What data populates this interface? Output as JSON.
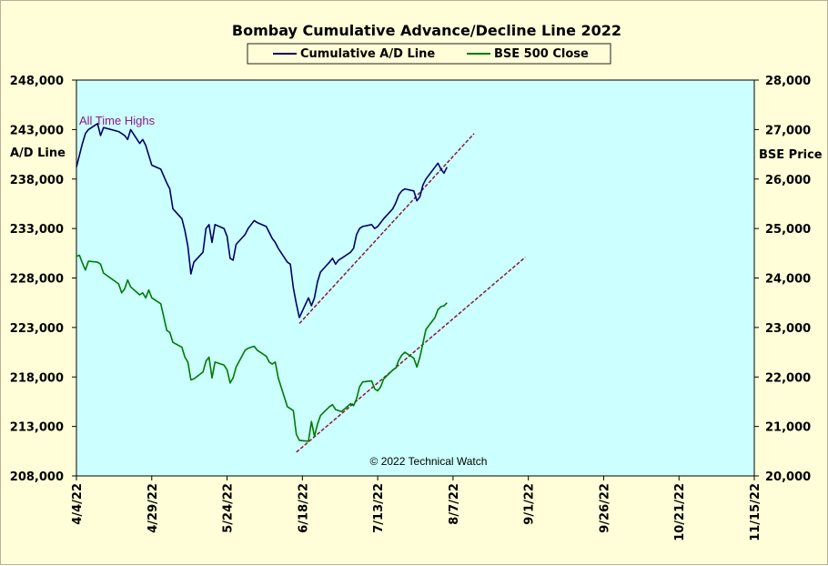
{
  "chart_data": {
    "type": "line",
    "title": "Bombay Cumulative Advance/Decline Line 2022",
    "y_left_label": "A/D Line",
    "y_right_label": "BSE Price",
    "y_left_lim": [
      208000,
      248000
    ],
    "y_right_lim": [
      20000,
      28000
    ],
    "y_left_ticks": [
      "248,000",
      "243,000",
      "238,000",
      "233,000",
      "228,000",
      "223,000",
      "218,000",
      "213,000",
      "208,000"
    ],
    "y_right_ticks": [
      "28,000",
      "27,000",
      "26,000",
      "25,000",
      "24,000",
      "23,000",
      "22,000",
      "21,000",
      "20,000"
    ],
    "x_tick_labels": [
      "4/4/22",
      "4/29/22",
      "5/24/22",
      "6/18/22",
      "7/13/22",
      "8/7/22",
      "9/1/22",
      "9/26/22",
      "10/21/22",
      "11/15/22"
    ],
    "x_range": [
      "2022-04-04",
      "2022-11-15"
    ],
    "grid": false,
    "legend_placement": "top-center",
    "annotations": {
      "all_time_highs": "All Time Highs",
      "copyright": "© 2022 Technical Watch"
    },
    "colors": {
      "plot_background": "#ccffff",
      "chart_background": "#fffed8",
      "ad_line": "#000066",
      "bse_line": "#007a00",
      "trendline": "#8b1a3a",
      "annotation": "#8b1a8b"
    },
    "series": [
      {
        "name": "Cumulative A/D Line",
        "axis": "left",
        "data": [
          [
            "2022-04-04",
            239200
          ],
          [
            "2022-04-05",
            240400
          ],
          [
            "2022-04-06",
            241600
          ],
          [
            "2022-04-07",
            242600
          ],
          [
            "2022-04-08",
            243000
          ],
          [
            "2022-04-11",
            243600
          ],
          [
            "2022-04-12",
            242400
          ],
          [
            "2022-04-13",
            243200
          ],
          [
            "2022-04-18",
            242800
          ],
          [
            "2022-04-19",
            242600
          ],
          [
            "2022-04-20",
            242400
          ],
          [
            "2022-04-21",
            242000
          ],
          [
            "2022-04-22",
            243000
          ],
          [
            "2022-04-25",
            241600
          ],
          [
            "2022-04-26",
            242000
          ],
          [
            "2022-04-27",
            241400
          ],
          [
            "2022-04-28",
            240400
          ],
          [
            "2022-04-29",
            239400
          ],
          [
            "2022-05-02",
            239000
          ],
          [
            "2022-05-04",
            237600
          ],
          [
            "2022-05-05",
            237000
          ],
          [
            "2022-05-06",
            235000
          ],
          [
            "2022-05-09",
            234000
          ],
          [
            "2022-05-10",
            232800
          ],
          [
            "2022-05-11",
            231200
          ],
          [
            "2022-05-12",
            228400
          ],
          [
            "2022-05-13",
            229600
          ],
          [
            "2022-05-16",
            230600
          ],
          [
            "2022-05-17",
            233000
          ],
          [
            "2022-05-18",
            233400
          ],
          [
            "2022-05-19",
            231600
          ],
          [
            "2022-05-20",
            233400
          ],
          [
            "2022-05-23",
            233000
          ],
          [
            "2022-05-24",
            232200
          ],
          [
            "2022-05-25",
            230000
          ],
          [
            "2022-05-26",
            229800
          ],
          [
            "2022-05-27",
            231400
          ],
          [
            "2022-05-30",
            232400
          ],
          [
            "2022-05-31",
            233000
          ],
          [
            "2022-06-01",
            233400
          ],
          [
            "2022-06-02",
            233800
          ],
          [
            "2022-06-03",
            233600
          ],
          [
            "2022-06-06",
            233200
          ],
          [
            "2022-06-07",
            232600
          ],
          [
            "2022-06-08",
            232000
          ],
          [
            "2022-06-09",
            231600
          ],
          [
            "2022-06-10",
            231000
          ],
          [
            "2022-06-13",
            229600
          ],
          [
            "2022-06-14",
            229400
          ],
          [
            "2022-06-15",
            227000
          ],
          [
            "2022-06-16",
            225400
          ],
          [
            "2022-06-17",
            224000
          ],
          [
            "2022-06-20",
            226000
          ],
          [
            "2022-06-21",
            225200
          ],
          [
            "2022-06-22",
            226000
          ],
          [
            "2022-06-23",
            227600
          ],
          [
            "2022-06-24",
            228600
          ],
          [
            "2022-06-27",
            229600
          ],
          [
            "2022-06-28",
            230000
          ],
          [
            "2022-06-29",
            229400
          ],
          [
            "2022-06-30",
            229800
          ],
          [
            "2022-07-01",
            230000
          ],
          [
            "2022-07-04",
            230600
          ],
          [
            "2022-07-05",
            231000
          ],
          [
            "2022-07-06",
            232400
          ],
          [
            "2022-07-07",
            233000
          ],
          [
            "2022-07-08",
            233200
          ],
          [
            "2022-07-11",
            233400
          ],
          [
            "2022-07-12",
            233000
          ],
          [
            "2022-07-13",
            233200
          ],
          [
            "2022-07-14",
            233600
          ],
          [
            "2022-07-15",
            234000
          ],
          [
            "2022-07-18",
            235000
          ],
          [
            "2022-07-19",
            235600
          ],
          [
            "2022-07-20",
            236400
          ],
          [
            "2022-07-21",
            236800
          ],
          [
            "2022-07-22",
            237000
          ],
          [
            "2022-07-25",
            236800
          ],
          [
            "2022-07-26",
            235800
          ],
          [
            "2022-07-27",
            236200
          ],
          [
            "2022-07-28",
            237400
          ],
          [
            "2022-07-29",
            238000
          ],
          [
            "2022-08-01",
            239200
          ],
          [
            "2022-08-02",
            239600
          ],
          [
            "2022-08-03",
            239000
          ],
          [
            "2022-08-04",
            238600
          ],
          [
            "2022-08-05",
            239200
          ]
        ]
      },
      {
        "name": "BSE 500 Close",
        "axis": "right",
        "data": [
          [
            "2022-04-04",
            24440
          ],
          [
            "2022-04-05",
            24460
          ],
          [
            "2022-04-06",
            24300
          ],
          [
            "2022-04-07",
            24160
          ],
          [
            "2022-04-08",
            24340
          ],
          [
            "2022-04-11",
            24320
          ],
          [
            "2022-04-12",
            24280
          ],
          [
            "2022-04-13",
            24100
          ],
          [
            "2022-04-18",
            23880
          ],
          [
            "2022-04-19",
            23700
          ],
          [
            "2022-04-20",
            23780
          ],
          [
            "2022-04-21",
            23960
          ],
          [
            "2022-04-22",
            23820
          ],
          [
            "2022-04-25",
            23660
          ],
          [
            "2022-04-26",
            23700
          ],
          [
            "2022-04-27",
            23600
          ],
          [
            "2022-04-28",
            23760
          ],
          [
            "2022-04-29",
            23600
          ],
          [
            "2022-05-02",
            23480
          ],
          [
            "2022-05-04",
            22940
          ],
          [
            "2022-05-05",
            22900
          ],
          [
            "2022-05-06",
            22700
          ],
          [
            "2022-05-09",
            22600
          ],
          [
            "2022-05-10",
            22400
          ],
          [
            "2022-05-11",
            22300
          ],
          [
            "2022-05-12",
            21940
          ],
          [
            "2022-05-13",
            21960
          ],
          [
            "2022-05-16",
            22100
          ],
          [
            "2022-05-17",
            22320
          ],
          [
            "2022-05-18",
            22400
          ],
          [
            "2022-05-19",
            21980
          ],
          [
            "2022-05-20",
            22300
          ],
          [
            "2022-05-23",
            22240
          ],
          [
            "2022-05-24",
            22140
          ],
          [
            "2022-05-25",
            21880
          ],
          [
            "2022-05-26",
            21980
          ],
          [
            "2022-05-27",
            22200
          ],
          [
            "2022-05-30",
            22540
          ],
          [
            "2022-05-31",
            22580
          ],
          [
            "2022-06-01",
            22600
          ],
          [
            "2022-06-02",
            22620
          ],
          [
            "2022-06-03",
            22540
          ],
          [
            "2022-06-06",
            22420
          ],
          [
            "2022-06-07",
            22300
          ],
          [
            "2022-06-08",
            22260
          ],
          [
            "2022-06-09",
            22300
          ],
          [
            "2022-06-10",
            21980
          ],
          [
            "2022-06-13",
            21400
          ],
          [
            "2022-06-14",
            21360
          ],
          [
            "2022-06-15",
            21320
          ],
          [
            "2022-06-16",
            20840
          ],
          [
            "2022-06-17",
            20720
          ],
          [
            "2022-06-20",
            20700
          ],
          [
            "2022-06-21",
            21100
          ],
          [
            "2022-06-22",
            20800
          ],
          [
            "2022-06-23",
            21040
          ],
          [
            "2022-06-24",
            21220
          ],
          [
            "2022-06-27",
            21400
          ],
          [
            "2022-06-28",
            21440
          ],
          [
            "2022-06-29",
            21340
          ],
          [
            "2022-06-30",
            21320
          ],
          [
            "2022-07-01",
            21300
          ],
          [
            "2022-07-04",
            21460
          ],
          [
            "2022-07-05",
            21420
          ],
          [
            "2022-07-06",
            21560
          ],
          [
            "2022-07-07",
            21800
          ],
          [
            "2022-07-08",
            21900
          ],
          [
            "2022-07-11",
            21920
          ],
          [
            "2022-07-12",
            21760
          ],
          [
            "2022-07-13",
            21720
          ],
          [
            "2022-07-14",
            21800
          ],
          [
            "2022-07-15",
            21960
          ],
          [
            "2022-07-18",
            22140
          ],
          [
            "2022-07-19",
            22180
          ],
          [
            "2022-07-20",
            22340
          ],
          [
            "2022-07-21",
            22440
          ],
          [
            "2022-07-22",
            22500
          ],
          [
            "2022-07-25",
            22380
          ],
          [
            "2022-07-26",
            22200
          ],
          [
            "2022-07-27",
            22400
          ],
          [
            "2022-07-28",
            22680
          ],
          [
            "2022-07-29",
            22960
          ],
          [
            "2022-08-01",
            23200
          ],
          [
            "2022-08-02",
            23360
          ],
          [
            "2022-08-03",
            23420
          ],
          [
            "2022-08-04",
            23440
          ],
          [
            "2022-08-05",
            23500
          ]
        ]
      }
    ],
    "trendlines": [
      {
        "axis": "left",
        "start": [
          "2022-06-17",
          223400
        ],
        "end": [
          "2022-08-14",
          242600
        ]
      },
      {
        "axis": "right",
        "start": [
          "2022-06-16",
          20480
        ],
        "end": [
          "2022-08-31",
          24420
        ]
      }
    ]
  }
}
